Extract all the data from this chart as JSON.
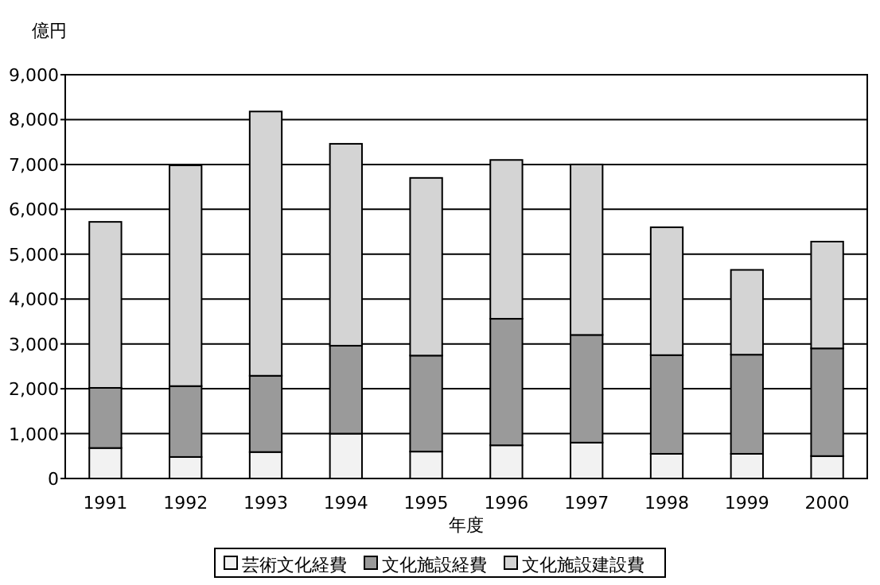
{
  "chart_data": {
    "type": "bar",
    "stacked": true,
    "ylabel": "億円",
    "xlabel": "年度",
    "categories": [
      "1991",
      "1992",
      "1993",
      "1994",
      "1995",
      "1996",
      "1997",
      "1998",
      "1999",
      "2000"
    ],
    "series": [
      {
        "name": "芸術文化経費",
        "color": "#f2f2f2",
        "values": [
          680,
          480,
          590,
          1000,
          600,
          740,
          800,
          550,
          550,
          500
        ]
      },
      {
        "name": "文化施設経費",
        "color": "#9a9a9a",
        "values": [
          1340,
          1580,
          1700,
          1960,
          2140,
          2820,
          2400,
          2200,
          2210,
          2400
        ]
      },
      {
        "name": "文化施設建設費",
        "color": "#d4d4d4",
        "values": [
          3700,
          4920,
          5890,
          4500,
          3960,
          3540,
          3800,
          2850,
          1890,
          2380
        ]
      }
    ],
    "ylim": [
      0,
      9000
    ],
    "yticks": [
      0,
      {
        "value": 1000,
        "label": "1,000"
      },
      {
        "value": 2000,
        "label": "2,000"
      },
      {
        "value": 3000,
        "label": "3,000"
      },
      {
        "value": 4000,
        "label": "4,000"
      },
      {
        "value": 5000,
        "label": "5,000"
      },
      {
        "value": 6000,
        "label": "6,000"
      },
      {
        "value": 7000,
        "label": "7,000"
      },
      {
        "value": 8000,
        "label": "8,000"
      },
      {
        "value": 9000,
        "label": "9,000"
      }
    ],
    "grid": "y",
    "legend": "bottom"
  }
}
